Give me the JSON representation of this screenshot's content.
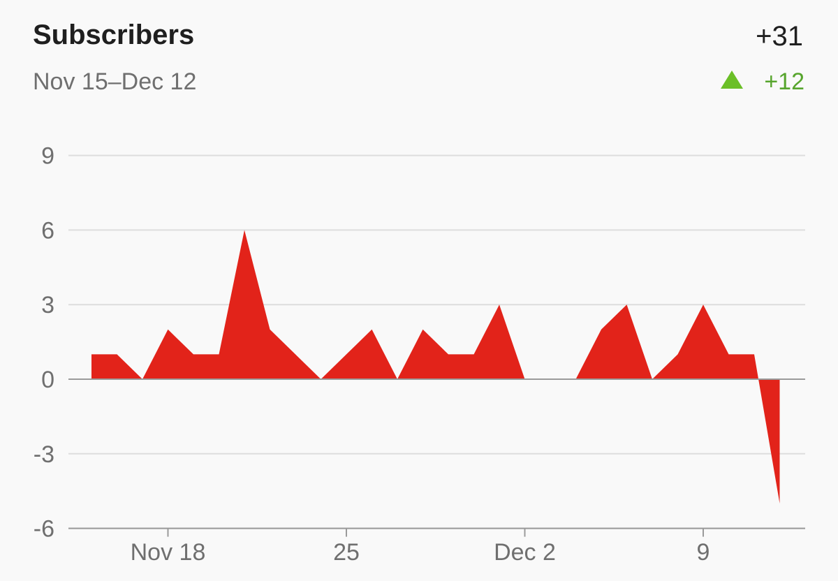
{
  "header": {
    "title": "Subscribers",
    "total": "+31",
    "range": "Nov 15–Dec 12",
    "change": "+12"
  },
  "colors": {
    "area": "#e2231a",
    "grid": "#dddddd",
    "zero_line": "#9a9a9a",
    "change": "#57a52d",
    "triangle": "#6bbf27"
  },
  "icons": {
    "change_indicator": "triangle-up-icon"
  },
  "chart_data": {
    "type": "area",
    "title": "Subscribers",
    "xlabel": "",
    "ylabel": "",
    "x_start": "Nov 15",
    "x_end": "Dec 12",
    "x": [
      "Nov 15",
      "Nov 16",
      "Nov 17",
      "Nov 18",
      "Nov 19",
      "Nov 20",
      "Nov 21",
      "Nov 22",
      "Nov 23",
      "Nov 24",
      "Nov 25",
      "Nov 26",
      "Nov 27",
      "Nov 28",
      "Nov 29",
      "Nov 30",
      "Dec 1",
      "Dec 2",
      "Dec 3",
      "Dec 4",
      "Dec 5",
      "Dec 6",
      "Dec 7",
      "Dec 8",
      "Dec 9",
      "Dec 10",
      "Dec 11",
      "Dec 12"
    ],
    "values": [
      1,
      1,
      0,
      2,
      1,
      1,
      6,
      2,
      1,
      0,
      1,
      2,
      0,
      2,
      1,
      1,
      3,
      0,
      0,
      0,
      2,
      3,
      0,
      1,
      3,
      1,
      1,
      -5
    ],
    "ylim": [
      -6,
      9
    ],
    "y_ticks": [
      9,
      6,
      3,
      0,
      -3,
      -6
    ],
    "x_tick_labels": [
      {
        "date": "Nov 18",
        "label": "Nov 18"
      },
      {
        "date": "Nov 25",
        "label": "25"
      },
      {
        "date": "Dec 2",
        "label": "Dec 2"
      },
      {
        "date": "Dec 9",
        "label": "9"
      }
    ],
    "grid": true
  }
}
